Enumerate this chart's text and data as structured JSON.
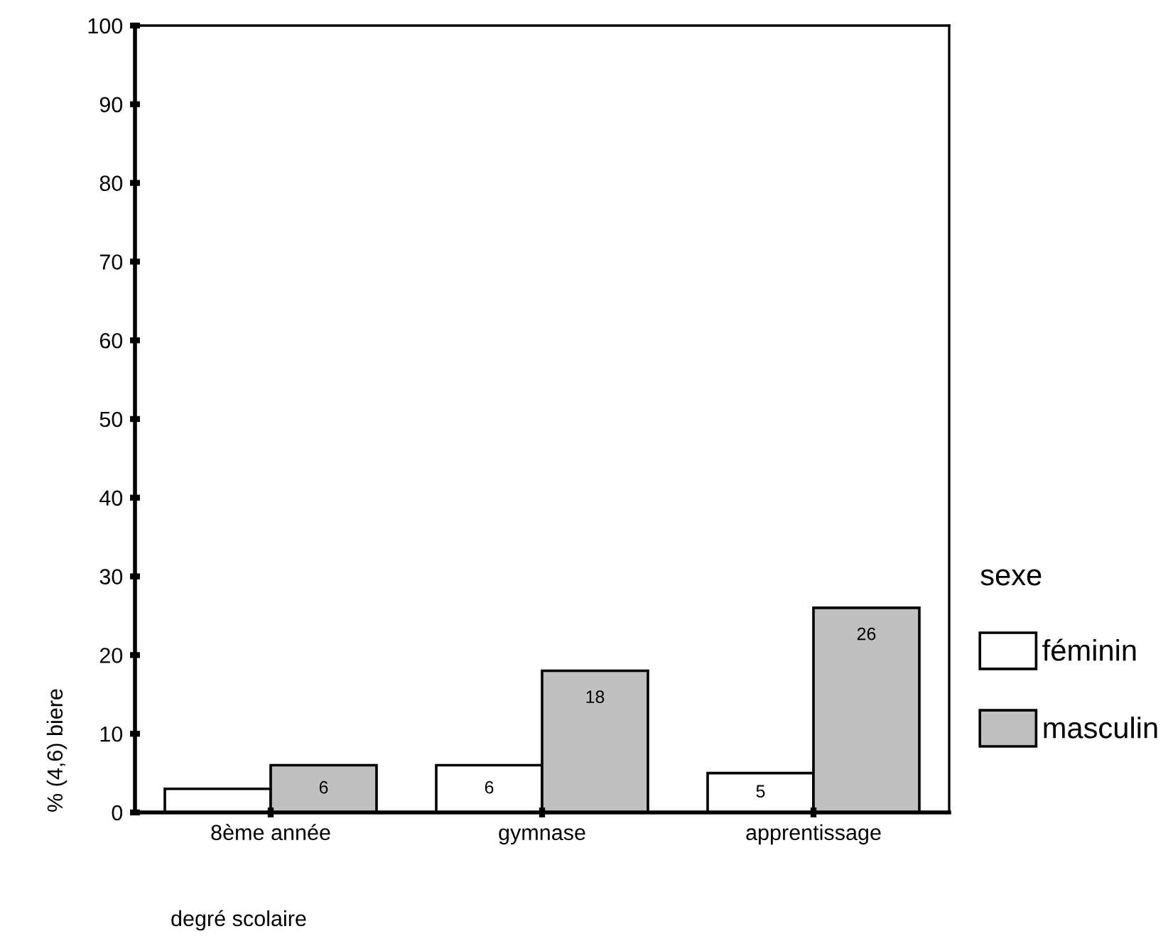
{
  "chart_data": {
    "type": "bar",
    "categories": [
      "8ème année",
      "gymnase",
      "apprentissage"
    ],
    "series": [
      {
        "name": "féminin",
        "color": "#ffffff",
        "values": [
          3,
          6,
          5
        ],
        "value_labels": [
          null,
          "6",
          "5"
        ]
      },
      {
        "name": "masculin",
        "color": "#c0c0c0",
        "values": [
          6,
          18,
          26
        ],
        "value_labels": [
          "6",
          "18",
          "26"
        ]
      }
    ],
    "xlabel": "degré scolaire",
    "ylabel": "% (4,6) biere",
    "legend_title": "sexe",
    "ylim": [
      0,
      100
    ],
    "yticks": [
      0,
      10,
      20,
      30,
      40,
      50,
      60,
      70,
      80,
      90,
      100
    ],
    "legend": "right",
    "grid": false
  }
}
